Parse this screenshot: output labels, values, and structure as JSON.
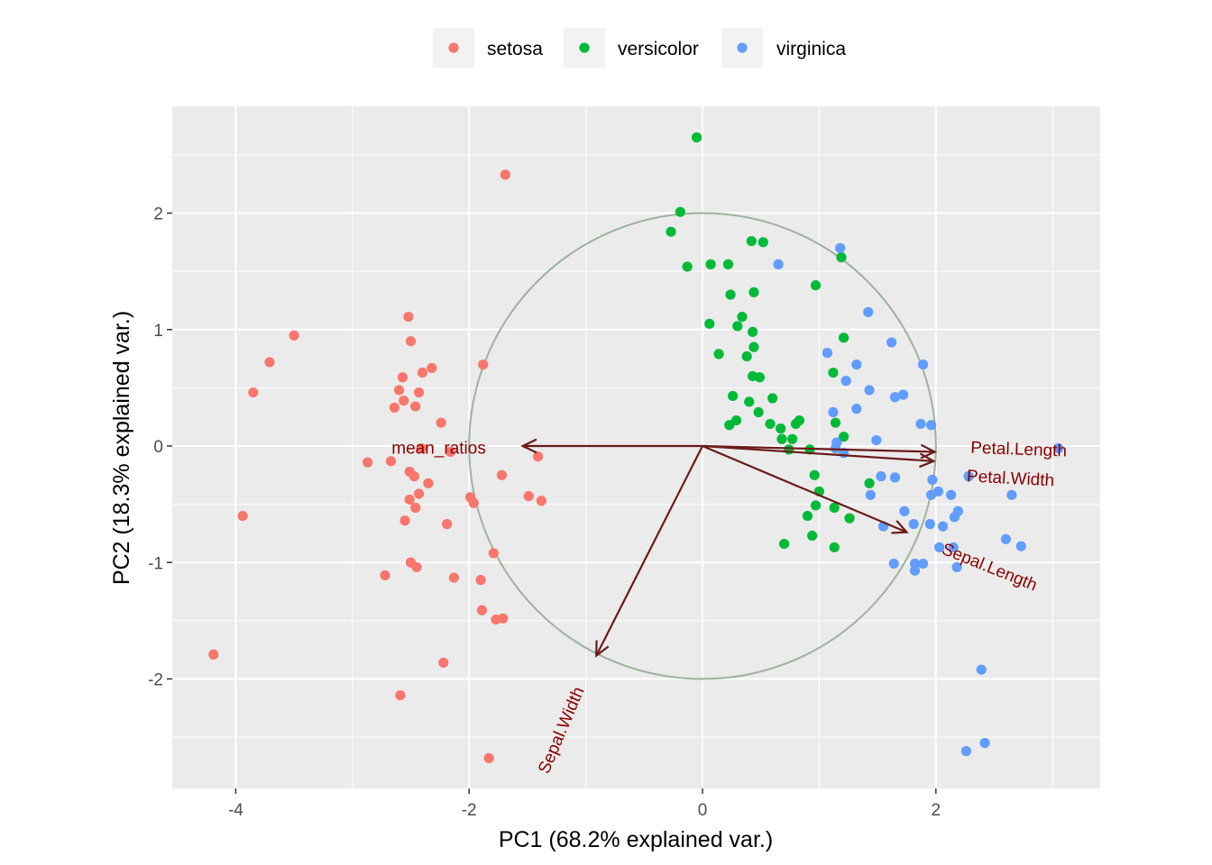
{
  "chart_data": {
    "type": "scatter",
    "title": "",
    "xlabel": "PC1 (68.2% explained var.)",
    "ylabel": "PC2 (18.3% explained var.)",
    "xlim": [
      -4.544,
      3.408
    ],
    "ylim": [
      -2.94,
      2.917
    ],
    "x_ticks": [
      -4,
      -2,
      0,
      2
    ],
    "y_ticks": [
      -2,
      -1,
      0,
      1,
      2
    ],
    "x_tick_labels": [
      "-4",
      "-2",
      "0",
      "2"
    ],
    "y_tick_labels": [
      "-2",
      "-1",
      "0",
      "1",
      "2"
    ],
    "grid": true,
    "legend_position": "top",
    "circle_radius": 2.0,
    "series": [
      {
        "name": "setosa",
        "color": "#F8766D",
        "points": [
          [
            -1.69,
            2.33
          ],
          [
            -2.52,
            1.11
          ],
          [
            -3.5,
            0.95
          ],
          [
            -2.5,
            0.9
          ],
          [
            -3.71,
            0.72
          ],
          [
            -1.88,
            0.7
          ],
          [
            -2.32,
            0.67
          ],
          [
            -2.4,
            0.63
          ],
          [
            -2.57,
            0.59
          ],
          [
            -3.85,
            0.46
          ],
          [
            -2.6,
            0.48
          ],
          [
            -2.43,
            0.46
          ],
          [
            -2.56,
            0.39
          ],
          [
            -2.46,
            0.34
          ],
          [
            -2.64,
            0.33
          ],
          [
            -2.24,
            0.2
          ],
          [
            -2.41,
            -0.02
          ],
          [
            -2.16,
            -0.05
          ],
          [
            -2.87,
            -0.14
          ],
          [
            -2.67,
            -0.13
          ],
          [
            -2.51,
            -0.22
          ],
          [
            -1.72,
            -0.25
          ],
          [
            -1.41,
            -0.09
          ],
          [
            -2.47,
            -0.26
          ],
          [
            -2.35,
            -0.32
          ],
          [
            -2.43,
            -0.41
          ],
          [
            -2.51,
            -0.46
          ],
          [
            -1.49,
            -0.43
          ],
          [
            -1.38,
            -0.47
          ],
          [
            -1.99,
            -0.44
          ],
          [
            -1.96,
            -0.49
          ],
          [
            -2.46,
            -0.53
          ],
          [
            -2.55,
            -0.64
          ],
          [
            -2.19,
            -0.67
          ],
          [
            -3.94,
            -0.6
          ],
          [
            -2.5,
            -1.0
          ],
          [
            -2.45,
            -1.04
          ],
          [
            -1.79,
            -0.92
          ],
          [
            -2.72,
            -1.11
          ],
          [
            -2.13,
            -1.13
          ],
          [
            -1.9,
            -1.15
          ],
          [
            -1.89,
            -1.41
          ],
          [
            -1.77,
            -1.49
          ],
          [
            -1.71,
            -1.48
          ],
          [
            -4.19,
            -1.79
          ],
          [
            -2.22,
            -1.86
          ],
          [
            -2.59,
            -2.14
          ],
          [
            -1.83,
            -2.68
          ]
        ]
      },
      {
        "name": "versicolor",
        "color": "#00BA38",
        "points": [
          [
            -0.05,
            2.65
          ],
          [
            -0.19,
            2.01
          ],
          [
            -0.27,
            1.84
          ],
          [
            -0.13,
            1.54
          ],
          [
            0.07,
            1.56
          ],
          [
            0.22,
            1.56
          ],
          [
            0.42,
            1.76
          ],
          [
            0.52,
            1.75
          ],
          [
            0.97,
            1.38
          ],
          [
            0.24,
            1.3
          ],
          [
            0.44,
            1.32
          ],
          [
            1.19,
            1.62
          ],
          [
            0.34,
            1.11
          ],
          [
            0.3,
            1.03
          ],
          [
            0.43,
            0.98
          ],
          [
            0.06,
            1.05
          ],
          [
            0.44,
            0.85
          ],
          [
            0.38,
            0.77
          ],
          [
            0.14,
            0.79
          ],
          [
            1.21,
            0.93
          ],
          [
            0.43,
            0.6
          ],
          [
            0.49,
            0.59
          ],
          [
            1.12,
            0.63
          ],
          [
            0.26,
            0.43
          ],
          [
            0.4,
            0.38
          ],
          [
            0.6,
            0.41
          ],
          [
            0.48,
            0.29
          ],
          [
            0.23,
            0.18
          ],
          [
            0.29,
            0.22
          ],
          [
            0.58,
            0.19
          ],
          [
            0.67,
            0.15
          ],
          [
            0.8,
            0.19
          ],
          [
            0.83,
            0.22
          ],
          [
            0.68,
            0.06
          ],
          [
            0.77,
            0.06
          ],
          [
            0.74,
            -0.03
          ],
          [
            0.92,
            -0.03
          ],
          [
            1.14,
            0.2
          ],
          [
            1.21,
            0.08
          ],
          [
            0.96,
            -0.25
          ],
          [
            1.0,
            -0.39
          ],
          [
            0.97,
            -0.51
          ],
          [
            1.13,
            -0.53
          ],
          [
            0.9,
            -0.6
          ],
          [
            1.26,
            -0.62
          ],
          [
            1.43,
            -0.32
          ],
          [
            0.94,
            -0.77
          ],
          [
            0.7,
            -0.84
          ],
          [
            1.13,
            -0.87
          ]
        ]
      },
      {
        "name": "virginica",
        "color": "#619CFF",
        "points": [
          [
            1.18,
            1.7
          ],
          [
            0.65,
            1.56
          ],
          [
            1.42,
            1.15
          ],
          [
            1.62,
            0.89
          ],
          [
            1.07,
            0.8
          ],
          [
            1.89,
            0.7
          ],
          [
            1.32,
            0.7
          ],
          [
            1.23,
            0.56
          ],
          [
            1.43,
            0.48
          ],
          [
            1.65,
            0.42
          ],
          [
            1.72,
            0.44
          ],
          [
            1.12,
            0.29
          ],
          [
            1.32,
            0.32
          ],
          [
            1.87,
            0.19
          ],
          [
            1.96,
            0.18
          ],
          [
            1.49,
            0.05
          ],
          [
            1.15,
            0.03
          ],
          [
            1.14,
            -0.02
          ],
          [
            1.21,
            -0.06
          ],
          [
            3.05,
            -0.02
          ],
          [
            1.53,
            -0.26
          ],
          [
            1.65,
            -0.27
          ],
          [
            1.97,
            -0.29
          ],
          [
            2.28,
            -0.26
          ],
          [
            2.02,
            -0.39
          ],
          [
            1.96,
            -0.42
          ],
          [
            2.13,
            -0.42
          ],
          [
            2.65,
            -0.42
          ],
          [
            1.44,
            -0.42
          ],
          [
            1.73,
            -0.56
          ],
          [
            2.19,
            -0.56
          ],
          [
            2.16,
            -0.61
          ],
          [
            1.81,
            -0.67
          ],
          [
            1.95,
            -0.67
          ],
          [
            2.06,
            -0.69
          ],
          [
            1.55,
            -0.69
          ],
          [
            2.6,
            -0.8
          ],
          [
            2.73,
            -0.86
          ],
          [
            2.03,
            -0.87
          ],
          [
            2.15,
            -0.87
          ],
          [
            1.64,
            -1.01
          ],
          [
            1.82,
            -1.01
          ],
          [
            1.89,
            -1.01
          ],
          [
            1.82,
            -1.07
          ],
          [
            2.18,
            -1.04
          ],
          [
            2.39,
            -1.92
          ],
          [
            2.26,
            -2.62
          ],
          [
            2.42,
            -2.55
          ]
        ]
      }
    ],
    "arrows": [
      {
        "name": "mean_ratios",
        "end": [
          -1.54,
          0.0
        ],
        "label_at": [
          -2.26,
          -0.02
        ]
      },
      {
        "name": "Petal.Length",
        "end": [
          1.99,
          -0.05
        ],
        "label_at": [
          2.71,
          -0.09
        ]
      },
      {
        "name": "Petal.Width",
        "end": [
          1.98,
          -0.13
        ],
        "label_at": [
          2.64,
          -0.2
        ]
      },
      {
        "name": "Sepal.Length",
        "end": [
          1.75,
          -0.74
        ],
        "label_at": [
          2.46,
          -1.04
        ]
      },
      {
        "name": "Sepal.Width",
        "end": [
          -0.91,
          -1.8
        ],
        "label_at": [
          -1.21,
          -2.44
        ]
      }
    ],
    "arrow_color": "#6B1A1A",
    "arrow_label_color": "#8B0000",
    "circle_color": "#9DB39D"
  }
}
